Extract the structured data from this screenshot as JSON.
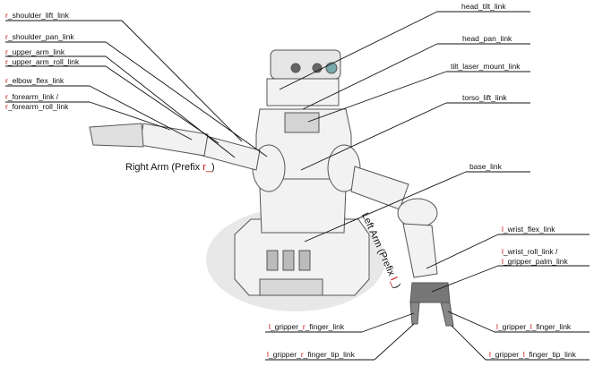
{
  "labels_left": [
    {
      "id": "r-shoulder-lift",
      "prefix": "r",
      "text": "_shoulder_lift_link"
    },
    {
      "id": "r-shoulder-pan",
      "prefix": "r",
      "text": "_shoulder_pan_link"
    },
    {
      "id": "r-upper-arm",
      "prefix": "r",
      "text": "_upper_arm_link"
    },
    {
      "id": "r-upper-arm-roll",
      "prefix": "r",
      "text": "_upper_arm_roll_link"
    },
    {
      "id": "r-elbow-flex",
      "prefix": "r",
      "text": "_elbow_flex_link"
    },
    {
      "id": "r-forearm",
      "prefix": "r",
      "text": "_forearm_link /"
    },
    {
      "id": "r-forearm-roll",
      "prefix": "r",
      "text": "_forearm_roll_link"
    }
  ],
  "labels_right": [
    {
      "id": "head-tilt",
      "text": "head_tilt_link"
    },
    {
      "id": "head-pan",
      "text": "head_pan_link"
    },
    {
      "id": "tilt-laser",
      "text": "tilt_laser_mount_link"
    },
    {
      "id": "torso-lift",
      "text": "torso_lift_link"
    },
    {
      "id": "base",
      "text": "base_link"
    }
  ],
  "labels_left_gripper": [
    {
      "id": "l-wrist-flex",
      "prefix": "l",
      "text": "_wrist_flex_link"
    },
    {
      "id": "l-wrist-roll",
      "prefix": "l",
      "text": "_wrist_roll_link /"
    },
    {
      "id": "l-gripper-palm",
      "prefix": "l",
      "text": "_gripper_palm_link"
    }
  ],
  "labels_fingers": [
    {
      "id": "l-gripper-r-finger",
      "a": "l",
      "mid": "_gripper_",
      "b": "r",
      "text": "_finger_link"
    },
    {
      "id": "l-gripper-l-finger",
      "a": "l",
      "mid": "_gripper_",
      "b": "l",
      "text": "_finger_link"
    },
    {
      "id": "l-gripper-r-finger-tip",
      "a": "l",
      "mid": "_gripper_",
      "b": "r",
      "text": "_finger_tip_link"
    },
    {
      "id": "l-gripper-l-finger-tip",
      "a": "l",
      "mid": "_gripper_",
      "b": "l",
      "text": "_finger_tip_link"
    }
  ],
  "captions": {
    "right_arm": "Right Arm (Prefix ",
    "right_arm_prefix": "r_",
    "right_arm_close": ")",
    "left_arm": "Left Arm (Prefix ",
    "left_arm_prefix": "l_",
    "left_arm_close": ")"
  },
  "colors": {
    "prefix": "#d01010",
    "line": "#111111",
    "robot_fill": "#f0f0f0",
    "robot_stroke": "#555555"
  }
}
